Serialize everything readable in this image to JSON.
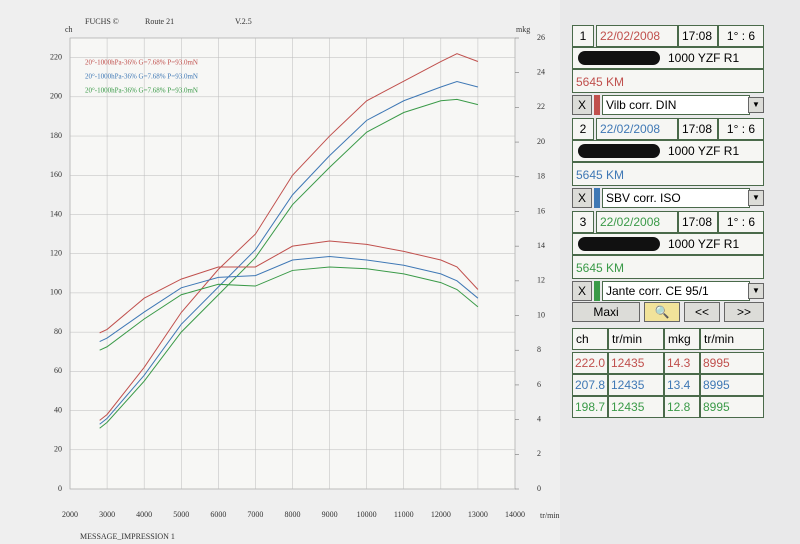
{
  "header": {
    "brand": "FUCHS ©",
    "route": "Route 21",
    "version": "V.2.5"
  },
  "footer": "MESSAGE_IMPRESSION 1",
  "chart_data": {
    "type": "line",
    "y_label": "ch",
    "y2_label": "mkg",
    "x_label": "tr/min",
    "x": [
      2800,
      3000,
      4000,
      5000,
      6000,
      7000,
      8000,
      9000,
      10000,
      11000,
      12000,
      12435,
      13000
    ],
    "series": [
      {
        "name": "20°-1000hPa-36% G=7.68% P=93.0mN",
        "color": "#c0504d",
        "values": [
          35,
          38,
          62,
          90,
          112,
          130,
          160,
          180,
          198,
          208,
          218,
          222,
          218
        ]
      },
      {
        "name": "20°-1000hPa-36% G=7.68% P=93.0mN",
        "color": "#3f78b5",
        "values": [
          33,
          36,
          58,
          84,
          103,
          122,
          150,
          170,
          188,
          198,
          205,
          207.8,
          205
        ]
      },
      {
        "name": "20°-1000hPa-36% G=7.68% P=93.0mN",
        "color": "#3a9a48",
        "values": [
          31,
          34,
          55,
          80,
          99,
          118,
          145,
          164,
          182,
          192,
          198,
          198.7,
          196
        ]
      },
      {
        "axis": "y2",
        "color": "#c0504d",
        "values": [
          9.0,
          9.2,
          11.0,
          12.1,
          12.8,
          12.8,
          14.0,
          14.3,
          14.1,
          13.7,
          13.2,
          12.8,
          11.5
        ]
      },
      {
        "axis": "y2",
        "color": "#3f78b5",
        "values": [
          8.5,
          8.7,
          10.2,
          11.6,
          12.2,
          12.3,
          13.2,
          13.4,
          13.2,
          12.9,
          12.4,
          12.0,
          11.0
        ]
      },
      {
        "axis": "y2",
        "color": "#3a9a48",
        "values": [
          8.0,
          8.2,
          9.8,
          11.2,
          11.8,
          11.7,
          12.6,
          12.8,
          12.7,
          12.4,
          11.9,
          11.5,
          10.5
        ]
      }
    ],
    "xlim": [
      2000,
      14000
    ],
    "xticks": [
      2000,
      3000,
      4000,
      5000,
      6000,
      7000,
      8000,
      9000,
      10000,
      11000,
      12000,
      13000,
      14000
    ],
    "ylim": [
      0,
      230
    ],
    "yticks": [
      0,
      20,
      40,
      60,
      80,
      100,
      120,
      140,
      160,
      180,
      200,
      220
    ],
    "y2lim": [
      0,
      26
    ],
    "y2ticks": [
      0,
      2,
      4,
      6,
      8,
      10,
      12,
      14,
      16,
      18,
      20,
      22,
      24,
      26
    ],
    "grid": true
  },
  "panel": {
    "runs": [
      {
        "number": "1",
        "date": "22/02/2008",
        "time": "17:08",
        "ratio": "1° : 6",
        "model": "1000 YZF R1",
        "km": "5645 KM",
        "correction": "Vilb corr. DIN",
        "color": "#c0504d"
      },
      {
        "number": "2",
        "date": "22/02/2008",
        "time": "17:08",
        "ratio": "1° : 6",
        "model": "1000 YZF R1",
        "km": "5645 KM",
        "correction": "SBV corr. ISO",
        "color": "#3f78b5"
      },
      {
        "number": "3",
        "date": "22/02/2008",
        "time": "17:08",
        "ratio": "1° : 6",
        "model": "1000 YZF R1",
        "km": "5645 KM",
        "correction": "Jante corr. CE 95/1",
        "color": "#3a9a48"
      }
    ],
    "buttons": {
      "maxi": "Maxi",
      "prev": "<<",
      "next": ">>",
      "close": "X"
    },
    "table": {
      "header": [
        "ch",
        "tr/min",
        "mkg",
        "tr/min"
      ],
      "rows": [
        [
          "222.0",
          "12435",
          "14.3",
          "8995"
        ],
        [
          "207.8",
          "12435",
          "13.4",
          "8995"
        ],
        [
          "198.7",
          "12435",
          "12.8",
          "8995"
        ]
      ]
    }
  }
}
